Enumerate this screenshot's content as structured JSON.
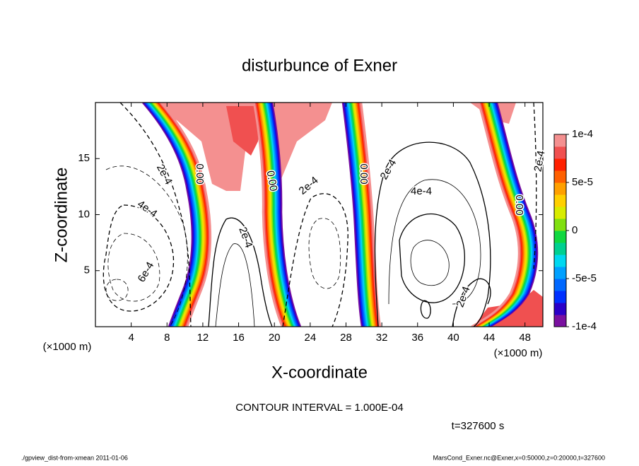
{
  "chart_data": {
    "type": "contour",
    "title": "disturbunce of Exner",
    "x_label": "X-coordinate",
    "y_label": "Z-coordinate",
    "x_unit_left": "(×1000 m)",
    "x_unit_right": "(×1000 m)",
    "contour_interval": "CONTOUR INTERVAL = 1.000E-04",
    "time_label": "t=327600 s",
    "footer_left": "./gpview_dist-from-xmean  2011-01-06",
    "footer_right": "MarsCond_Exner.nc@Exner,x=0:50000,z=0:20000,t=327600",
    "xlim": [
      0,
      50
    ],
    "ylim": [
      0,
      20
    ],
    "xticks": [
      4,
      8,
      12,
      16,
      20,
      24,
      28,
      32,
      36,
      40,
      44,
      48
    ],
    "yticks": [
      5,
      10,
      15
    ],
    "contour_labels": [
      "2e-4",
      "4e-4",
      "6e-4",
      "0.00",
      "0.00",
      "2e-4",
      "2e-4",
      "0.00",
      "2e-4",
      "4e-4",
      "2e-4",
      "0.00",
      "2e-4"
    ],
    "colorbar": {
      "lim": [
        -0.0001,
        0.0001
      ],
      "ticks": [
        {
          "value": 0.0001,
          "label": "1e-4"
        },
        {
          "value": 5e-05,
          "label": "5e-5"
        },
        0,
        {
          "value": -5e-05,
          "label": "-5e-5"
        },
        {
          "value": -0.0001,
          "label": "-1e-4"
        }
      ],
      "colors": [
        "#7a10a0",
        "#2a00c8",
        "#0030ff",
        "#0068ff",
        "#00a0ff",
        "#00d8f0",
        "#00d090",
        "#10d840",
        "#80e010",
        "#d8ec00",
        "#ffd000",
        "#ffa000",
        "#ff6000",
        "#ff2000",
        "#f05050",
        "#f49090"
      ]
    }
  }
}
